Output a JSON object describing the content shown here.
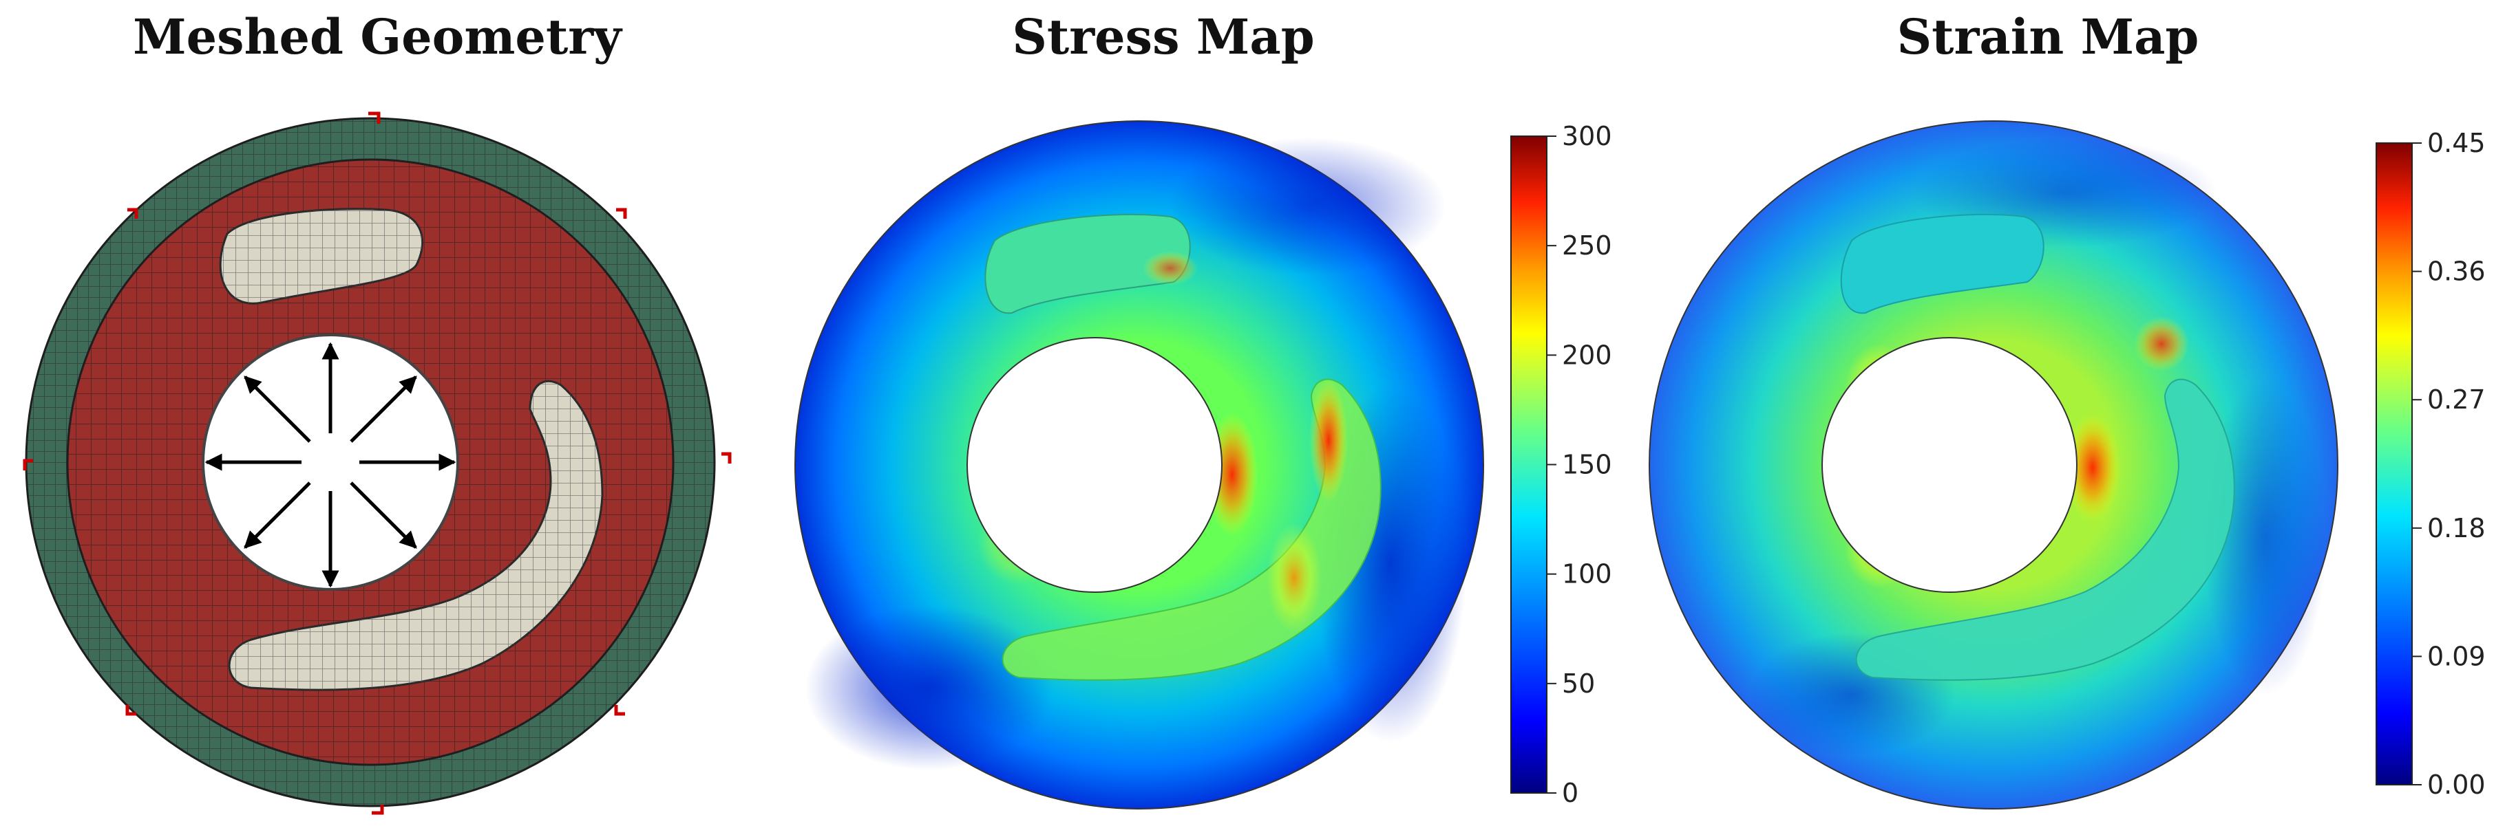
{
  "panels": {
    "meshed": {
      "title": "Meshed Geometry"
    },
    "stress": {
      "title": "Stress Map"
    },
    "strain": {
      "title": "Strain Map"
    }
  },
  "colorbars": {
    "stress": {
      "min": 0,
      "max": 300,
      "ticks": [
        "300",
        "250",
        "200",
        "150",
        "100",
        "50",
        "0"
      ]
    },
    "strain": {
      "min": 0,
      "max": 0.45,
      "ticks": [
        "0.45",
        "0.36",
        "0.27",
        "0.18",
        "0.09",
        "0.00"
      ]
    }
  },
  "colors": {
    "outer_ring": "#3f6b59",
    "matrix": "#9b2f2c",
    "inclusion": "#d9d6c6",
    "mesh_line": "#1e1e1e",
    "arrow": "#000000",
    "corner_marker": "#cc0000",
    "colormap": [
      "#000080",
      "#0000ff",
      "#0080ff",
      "#00e5ff",
      "#33ff99",
      "#a0ff3c",
      "#ffff00",
      "#ff9900",
      "#ff2200",
      "#800000"
    ]
  },
  "icons": {
    "pressure_arrows": "arrow-icon",
    "boundary_markers": "corner-marker-icon"
  }
}
